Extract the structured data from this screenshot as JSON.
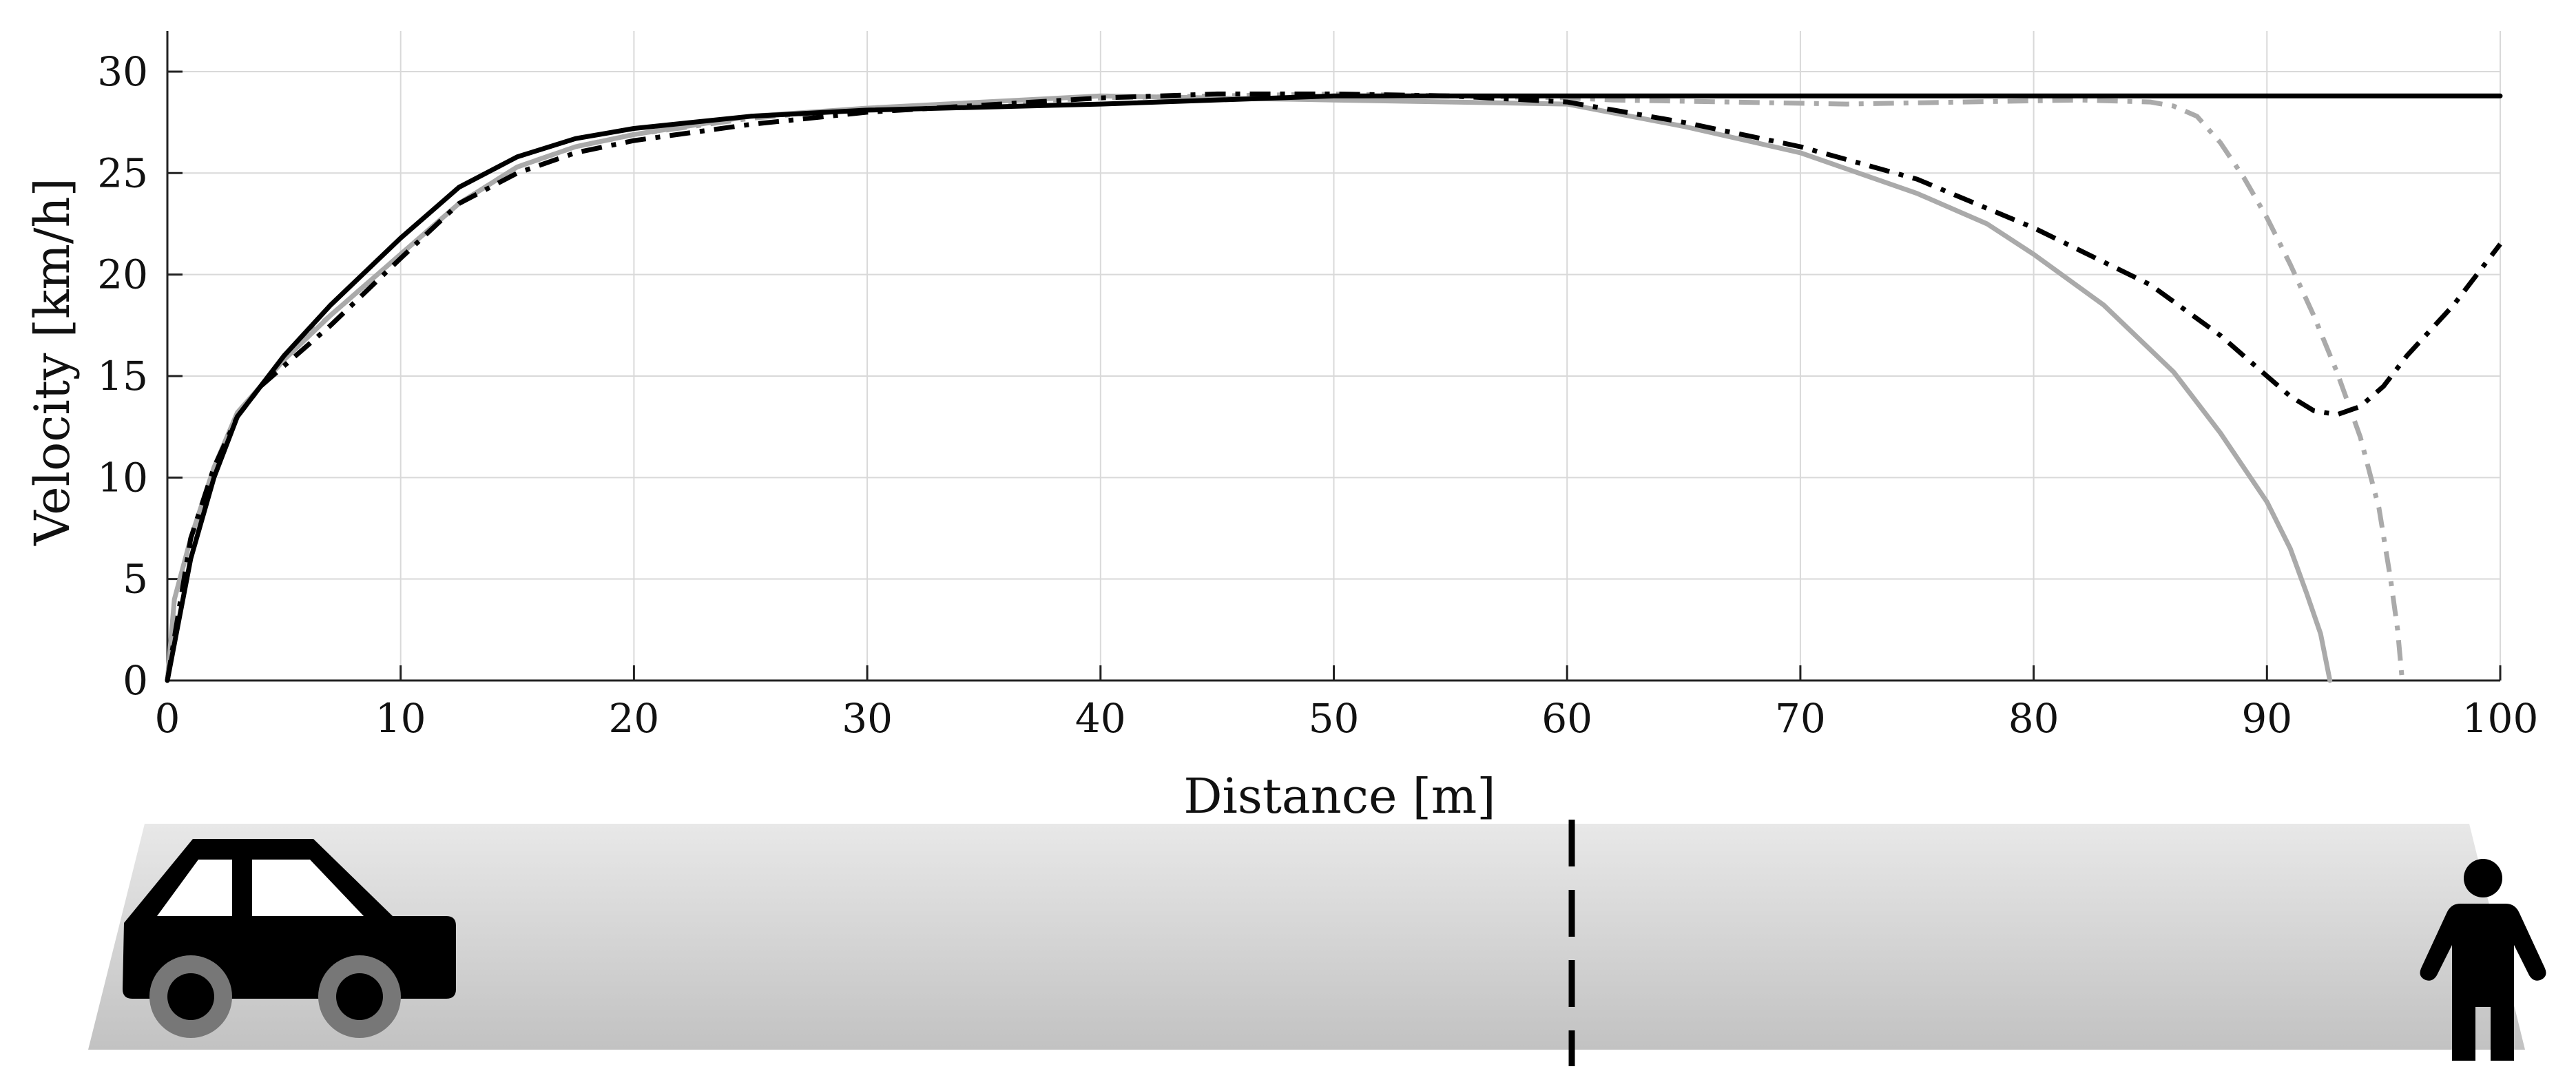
{
  "chart_data": {
    "type": "line",
    "xlabel": "Distance [m]",
    "ylabel": "Velocity [km/h]",
    "xlim": [
      0,
      100
    ],
    "ylim": [
      0,
      32
    ],
    "xticks": [
      0,
      10,
      20,
      30,
      40,
      50,
      60,
      70,
      80,
      90,
      100
    ],
    "yticks": [
      0,
      5,
      10,
      15,
      20,
      25,
      30
    ],
    "grid": true,
    "legend": "none",
    "series": [
      {
        "color": "#000000",
        "style": "solid",
        "points": [
          [
            0,
            0
          ],
          [
            0.5,
            3
          ],
          [
            1,
            6
          ],
          [
            2,
            10
          ],
          [
            3,
            13
          ],
          [
            5,
            16
          ],
          [
            7,
            18.5
          ],
          [
            10,
            21.8
          ],
          [
            12.5,
            24.3
          ],
          [
            15,
            25.8
          ],
          [
            17.5,
            26.7
          ],
          [
            20,
            27.2
          ],
          [
            25,
            27.8
          ],
          [
            30,
            28.1
          ],
          [
            40,
            28.4
          ],
          [
            50,
            28.8
          ],
          [
            60,
            28.8
          ],
          [
            70,
            28.8
          ],
          [
            80,
            28.8
          ],
          [
            90,
            28.8
          ],
          [
            100,
            28.8
          ]
        ]
      },
      {
        "color": "#000000",
        "style": "dash-dot",
        "points": [
          [
            0,
            0
          ],
          [
            0.5,
            3.5
          ],
          [
            1,
            7
          ],
          [
            2,
            10.5
          ],
          [
            3,
            13
          ],
          [
            4,
            14.5
          ],
          [
            5,
            15.5
          ],
          [
            7,
            17.5
          ],
          [
            10,
            20.8
          ],
          [
            12.5,
            23.5
          ],
          [
            15,
            25
          ],
          [
            17.5,
            26
          ],
          [
            20,
            26.6
          ],
          [
            25,
            27.4
          ],
          [
            30,
            28
          ],
          [
            40,
            28.7
          ],
          [
            45,
            28.9
          ],
          [
            50,
            28.9
          ],
          [
            55,
            28.8
          ],
          [
            60,
            28.5
          ],
          [
            65,
            27.5
          ],
          [
            70,
            26.3
          ],
          [
            75,
            24.7
          ],
          [
            80,
            22.3
          ],
          [
            85,
            19.5
          ],
          [
            88,
            17
          ],
          [
            90,
            15
          ],
          [
            91,
            14
          ],
          [
            92,
            13.3
          ],
          [
            93,
            13.1
          ],
          [
            94,
            13.5
          ],
          [
            95,
            14.5
          ],
          [
            96,
            16
          ],
          [
            98,
            18.5
          ],
          [
            100,
            21.5
          ]
        ]
      },
      {
        "color": "#aaaaaa",
        "style": "solid",
        "points": [
          [
            0,
            0
          ],
          [
            0.3,
            4
          ],
          [
            1,
            7
          ],
          [
            2,
            10.5
          ],
          [
            3,
            13.2
          ],
          [
            5,
            15.8
          ],
          [
            7,
            18
          ],
          [
            10,
            21
          ],
          [
            12.5,
            23.5
          ],
          [
            15,
            25.3
          ],
          [
            17.5,
            26.3
          ],
          [
            20,
            26.9
          ],
          [
            25,
            27.8
          ],
          [
            30,
            28.2
          ],
          [
            40,
            28.8
          ],
          [
            50,
            28.6
          ],
          [
            55,
            28.5
          ],
          [
            60,
            28.4
          ],
          [
            65,
            27.3
          ],
          [
            70,
            26
          ],
          [
            75,
            24
          ],
          [
            78,
            22.5
          ],
          [
            80,
            21
          ],
          [
            83,
            18.5
          ],
          [
            86,
            15.2
          ],
          [
            88,
            12.2
          ],
          [
            90,
            8.8
          ],
          [
            91,
            6.5
          ],
          [
            91.7,
            4.3
          ],
          [
            92.3,
            2.3
          ],
          [
            92.7,
            0
          ]
        ]
      },
      {
        "color": "#aaaaaa",
        "style": "dash-dot",
        "points": [
          [
            0,
            0
          ],
          [
            0.5,
            3.5
          ],
          [
            1,
            7
          ],
          [
            2,
            10.5
          ],
          [
            3,
            13
          ],
          [
            5,
            16
          ],
          [
            7,
            18
          ],
          [
            10,
            21
          ],
          [
            12.5,
            23.5
          ],
          [
            15,
            25.3
          ],
          [
            17.5,
            26.3
          ],
          [
            20,
            26.9
          ],
          [
            25,
            27.7
          ],
          [
            30,
            28.2
          ],
          [
            40,
            28.7
          ],
          [
            50,
            28.9
          ],
          [
            60,
            28.7
          ],
          [
            62,
            28.6
          ],
          [
            67,
            28.5
          ],
          [
            72,
            28.4
          ],
          [
            77,
            28.5
          ],
          [
            82,
            28.6
          ],
          [
            85,
            28.5
          ],
          [
            86,
            28.3
          ],
          [
            87,
            27.8
          ],
          [
            88,
            26.5
          ],
          [
            89,
            24.8
          ],
          [
            90,
            22.8
          ],
          [
            91,
            20.5
          ],
          [
            92,
            18
          ],
          [
            93,
            15.2
          ],
          [
            94,
            12
          ],
          [
            94.8,
            8.5
          ],
          [
            95.3,
            5
          ],
          [
            95.6,
            2.5
          ],
          [
            95.8,
            0
          ]
        ]
      }
    ]
  },
  "scene": {
    "road_color_top": "#e8e8e8",
    "road_color_bottom": "#c2c2c2",
    "car_icon": "car-icon",
    "pedestrian_icon": "pedestrian-icon",
    "marker_distance": 60
  }
}
